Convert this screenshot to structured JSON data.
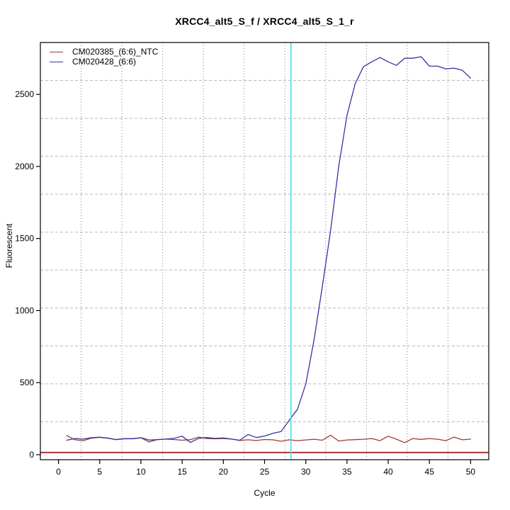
{
  "chart_data": {
    "type": "line",
    "title": "XRCC4_alt5_S_f / XRCC4_alt5_S_1_r",
    "xlabel": "Cycle",
    "ylabel": "Fluorescent",
    "x_range": [
      -2.2,
      52.2
    ],
    "y_range": [
      -35,
      2860
    ],
    "xticks": [
      0,
      5,
      10,
      15,
      20,
      25,
      30,
      35,
      40,
      45,
      50
    ],
    "yticks": [
      0,
      500,
      1000,
      1500,
      2000,
      2500
    ],
    "grid": {
      "divisions": 11,
      "v_color": "#7d7d7d",
      "h_color": "#b8b8b8",
      "legend_position": "top-left"
    },
    "x": [
      1,
      2,
      3,
      4,
      5,
      6,
      7,
      8,
      9,
      10,
      11,
      12,
      13,
      14,
      15,
      16,
      17,
      18,
      19,
      20,
      21,
      22,
      23,
      24,
      25,
      26,
      27,
      28,
      29,
      30,
      31,
      32,
      33,
      34,
      35,
      36,
      37,
      38,
      39,
      40,
      41,
      42,
      43,
      44,
      45,
      46,
      47,
      48,
      49,
      50
    ],
    "series": [
      {
        "id": "ntc",
        "name": "CM020385_(6:6)_NTC",
        "color": "#a43636",
        "values": [
          133,
          103,
          97,
          115,
          120,
          114,
          105,
          111,
          110,
          117,
          88,
          105,
          108,
          105,
          100,
          104,
          122,
          112,
          110,
          112,
          108,
          98,
          103,
          98,
          105,
          103,
          93,
          103,
          97,
          102,
          107,
          100,
          135,
          95,
          102,
          104,
          107,
          112,
          97,
          128,
          107,
          84,
          112,
          106,
          112,
          107,
          97,
          122,
          103,
          108
        ]
      },
      {
        "id": "sample",
        "name": "CM020428_(6:6)",
        "color": "#3434a4",
        "values": [
          100,
          112,
          108,
          118,
          122,
          115,
          104,
          111,
          111,
          118,
          101,
          104,
          108,
          113,
          128,
          85,
          113,
          119,
          113,
          116,
          108,
          100,
          140,
          119,
          129,
          148,
          160,
          240,
          315,
          490,
          795,
          1165,
          1550,
          2000,
          2355,
          2575,
          2692,
          2726,
          2756,
          2726,
          2701,
          2751,
          2751,
          2761,
          2696,
          2696,
          2677,
          2682,
          2667,
          2613
        ]
      }
    ],
    "ct_line": {
      "cycle": 28.2,
      "color": "#45dfea"
    },
    "baseline": {
      "value": 15,
      "color": "#9e2c2c"
    }
  }
}
